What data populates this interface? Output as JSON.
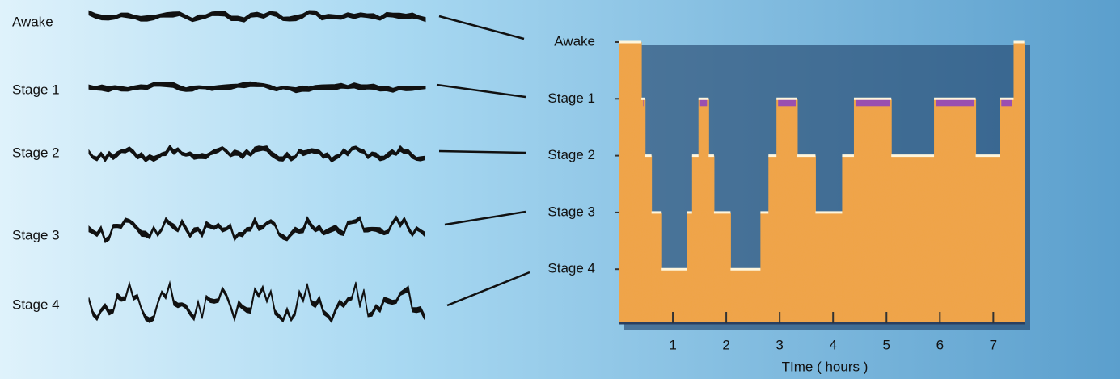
{
  "eeg_waves": {
    "labels": [
      "Awake",
      "Stage 1",
      "Stage 2",
      "Stage 3",
      "Stage 4"
    ]
  },
  "chart_data": {
    "type": "step",
    "y_categories": [
      "Awake",
      "Stage 1",
      "Stage 2",
      "Stage 3",
      "Stage 4"
    ],
    "x_edges": [
      0,
      0.41,
      0.48,
      0.6,
      0.79,
      1.27,
      1.36,
      1.48,
      1.67,
      1.77,
      2.08,
      2.64,
      2.79,
      2.94,
      3.33,
      3.67,
      4.17,
      4.39,
      5.09,
      5.89,
      6.67,
      7.12,
      7.38,
      7.58
    ],
    "values": [
      "Awake",
      "Stage 1",
      "Stage 2",
      "Stage 3",
      "Stage 4",
      "Stage 3",
      "Stage 2",
      "Stage 1",
      "Stage 2",
      "Stage 3",
      "Stage 4",
      "Stage 3",
      "Stage 2",
      "Stage 1",
      "Stage 2",
      "Stage 3",
      "Stage 2",
      "Stage 1",
      "Stage 2",
      "Stage 1",
      "Stage 2",
      "Stage 1",
      "Awake"
    ],
    "xlim": [
      0,
      7.6
    ],
    "xticks": [
      1,
      2,
      3,
      4,
      5,
      6,
      7
    ],
    "x_label": "TIme ( hours )",
    "color": "#f0a646",
    "rem_color": "#9a4fb0",
    "rem_stage": "Stage 1"
  }
}
